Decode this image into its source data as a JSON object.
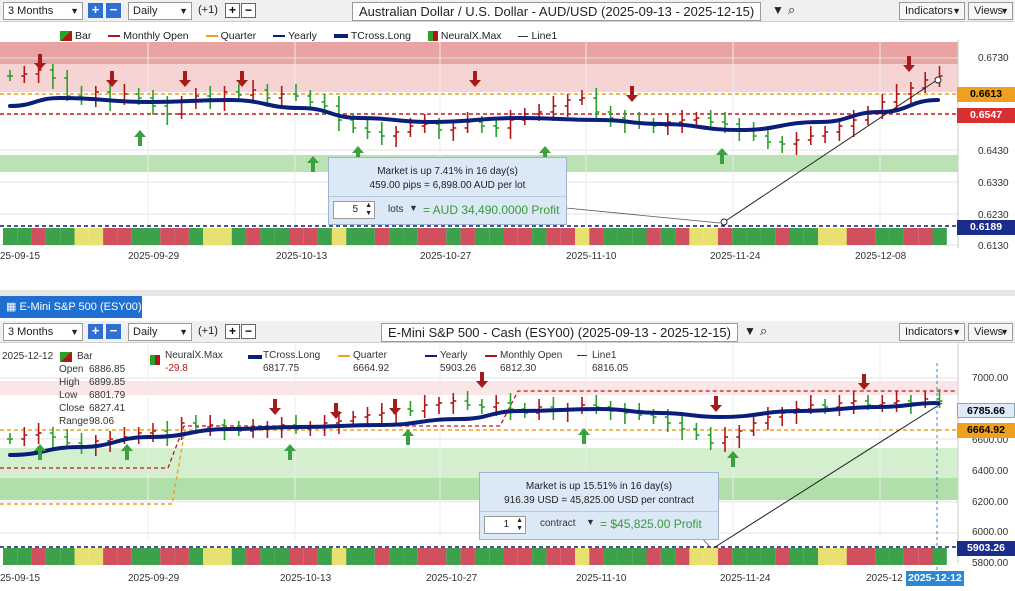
{
  "top": {
    "range_select": "3 Months",
    "period_select": "Daily",
    "offset": "(+1)",
    "title": "Australian Dollar / U.S. Dollar - AUD/USD (2025-09-13 - 2025-12-15)",
    "indicators_btn": "Indicators",
    "views_btn": "Views",
    "legend": [
      "Bar",
      "Monthly Open",
      "Quarter",
      "Yearly",
      "TCross.Long",
      "NeuralX.Max",
      "Line1"
    ],
    "y_ticks": [
      "0.6730",
      "0.6430",
      "0.6330",
      "0.6230",
      "0.6130"
    ],
    "price_labels": {
      "p1": "0.6613",
      "p2": "0.6547",
      "p3": "0.6189"
    },
    "dates": [
      "25-09-15",
      "2025-09-29",
      "2025-10-13",
      "2025-10-27",
      "2025-11-10",
      "2025-11-24",
      "2025-12-08"
    ],
    "info": {
      "line1": "Market is up 7.41% in 16 day(s)",
      "line2": "459.00 pips = 6,898.00 AUD per lot",
      "qty": "5",
      "unit": "lots",
      "profit": "= AUD 34,490.0000 Profit"
    }
  },
  "bottom": {
    "tab": "E-Mini S&P 500 (ESY00)",
    "range_select": "3 Months",
    "period_select": "Daily",
    "offset": "(+1)",
    "title": "E-Mini S&P 500 - Cash (ESY00) (2025-09-13 - 2025-12-15)",
    "indicators_btn": "Indicators",
    "views_btn": "Views",
    "ohlc_date": "2025-12-12",
    "ohlc": [
      {
        "k": "Open",
        "v": "6886.85"
      },
      {
        "k": "High",
        "v": "6899.85"
      },
      {
        "k": "Low",
        "v": "6801.79"
      },
      {
        "k": "Close",
        "v": "6827.41"
      },
      {
        "k": "Range",
        "v": "98.06"
      }
    ],
    "bar_label": "Bar",
    "legend_vals": [
      {
        "name": "NeuralX.Max",
        "val": "-29.8"
      },
      {
        "name": "TCross.Long",
        "val": "6817.75"
      },
      {
        "name": "Quarter",
        "val": "6664.92"
      },
      {
        "name": "Yearly",
        "val": "5903.26"
      },
      {
        "name": "Monthly Open",
        "val": "6812.30"
      },
      {
        "name": "Line1",
        "val": "6816.05"
      }
    ],
    "y_ticks": [
      "7000.00",
      "6600.00",
      "6400.00",
      "6200.00",
      "6000.00",
      "5800.00"
    ],
    "price_labels": {
      "p1": "6785.66",
      "p2": "6664.92",
      "p3": "5903.26"
    },
    "dates": [
      "25-09-15",
      "2025-09-29",
      "2025-10-13",
      "2025-10-27",
      "2025-11-10",
      "2025-11-24",
      "2025-12"
    ],
    "cursor_date": "2025-12-12",
    "info": {
      "line1": "Market is up 15.51% in 16 day(s)",
      "line2": "916.39 USD = 45,825.00 USD per contract",
      "qty": "1",
      "unit": "contract",
      "profit": "= $45,825.00 Profit"
    }
  },
  "colors": {
    "tcross": "#0a1f7a",
    "up_bar": "#2aa02a",
    "down_bar": "#b01818",
    "red_zone": "#e58c8c",
    "green_zone": "#a9dba0",
    "quarter": "#f0a020",
    "accent_blue": "#1e6fd0"
  }
}
